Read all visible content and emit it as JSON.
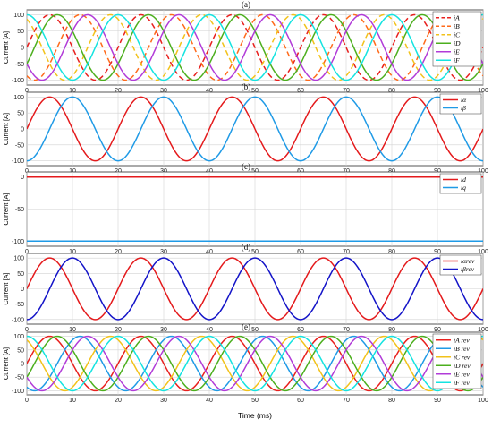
{
  "figure": {
    "xlabel": "Time (ms)",
    "x_ticks": [
      "0",
      "10",
      "20",
      "30",
      "40",
      "50",
      "60",
      "70",
      "80",
      "90",
      "100"
    ]
  },
  "chart_data": [
    {
      "type": "line",
      "panel_label": "(a)",
      "ylabel": "Current [A]",
      "xlim": [
        0,
        100
      ],
      "ylim": [
        -115,
        115
      ],
      "y_ticks": [
        -100,
        -50,
        0,
        50,
        100
      ],
      "grid": true,
      "legend_position": "top-right",
      "frequency_hz": 50,
      "series": [
        {
          "name": "iA",
          "sub": "A",
          "color": "#e8201e",
          "dash": true,
          "amplitude": 100,
          "phase_deg": 0
        },
        {
          "name": "iB",
          "sub": "B",
          "color": "#ff6a1a",
          "dash": true,
          "amplitude": 100,
          "phase_deg": -120
        },
        {
          "name": "iC",
          "sub": "C",
          "color": "#f2c21b",
          "dash": true,
          "amplitude": 100,
          "phase_deg": -240
        },
        {
          "name": "iD",
          "sub": "D",
          "color": "#4caf1e",
          "dash": false,
          "amplitude": 100,
          "phase_deg": -30
        },
        {
          "name": "iE",
          "sub": "E",
          "color": "#b13bd8",
          "dash": false,
          "amplitude": 100,
          "phase_deg": -150
        },
        {
          "name": "iF",
          "sub": "F",
          "color": "#14e3e0",
          "dash": false,
          "amplitude": 100,
          "phase_deg": -270
        }
      ]
    },
    {
      "type": "line",
      "panel_label": "(b)",
      "ylabel": "Current [A]",
      "xlim": [
        0,
        100
      ],
      "ylim": [
        -115,
        115
      ],
      "y_ticks": [
        -100,
        -50,
        0,
        50,
        100
      ],
      "grid": true,
      "legend_position": "top-right",
      "frequency_hz": 50,
      "series": [
        {
          "name": "iα",
          "sub": "",
          "color": "#e41a1c",
          "dash": false,
          "amplitude": 100,
          "phase_deg": 0
        },
        {
          "name": "iβ",
          "sub": "",
          "color": "#1f9ae6",
          "dash": false,
          "amplitude": 100,
          "phase_deg": -90
        }
      ]
    },
    {
      "type": "line",
      "panel_label": "(c)",
      "ylabel": "Current [A]",
      "xlim": [
        0,
        100
      ],
      "ylim": [
        -108,
        8
      ],
      "y_ticks": [
        -100,
        -50,
        0
      ],
      "grid": true,
      "legend_position": "top-right",
      "series": [
        {
          "name": "id",
          "sub": "d",
          "color": "#e41a1c",
          "dash": false,
          "constant": 0
        },
        {
          "name": "iq",
          "sub": "q",
          "color": "#1f9ae6",
          "dash": false,
          "constant": -100
        }
      ]
    },
    {
      "type": "line",
      "panel_label": "(d)",
      "ylabel": "Current [A]",
      "xlim": [
        0,
        100
      ],
      "ylim": [
        -115,
        115
      ],
      "y_ticks": [
        -100,
        -50,
        0,
        50,
        100
      ],
      "grid": true,
      "legend_position": "top-right",
      "frequency_hz": 50,
      "series": [
        {
          "name": "iαrev",
          "sub": "rev",
          "color": "#e41a1c",
          "dash": false,
          "amplitude": 100,
          "phase_deg": 0
        },
        {
          "name": "iβrev",
          "sub": "rev",
          "color": "#1414c8",
          "dash": false,
          "amplitude": 100,
          "phase_deg": -90
        }
      ]
    },
    {
      "type": "line",
      "panel_label": "(e)",
      "ylabel": "Current [A]",
      "xlim": [
        0,
        100
      ],
      "ylim": [
        -115,
        115
      ],
      "y_ticks": [
        -100,
        -50,
        0,
        50,
        100
      ],
      "grid": true,
      "legend_position": "top-right",
      "frequency_hz": 50,
      "series": [
        {
          "name": "iA rev",
          "sub": "A rev",
          "color": "#e8201e",
          "dash": false,
          "amplitude": 100,
          "phase_deg": 0
        },
        {
          "name": "iB rev",
          "sub": "B rev",
          "color": "#1f9ae6",
          "dash": false,
          "amplitude": 100,
          "phase_deg": -120
        },
        {
          "name": "iC rev",
          "sub": "C rev",
          "color": "#f2c21b",
          "dash": false,
          "amplitude": 100,
          "phase_deg": -240
        },
        {
          "name": "iD rev",
          "sub": "D rev",
          "color": "#4caf1e",
          "dash": false,
          "amplitude": 100,
          "phase_deg": -30
        },
        {
          "name": "iE rev",
          "sub": "E rev",
          "color": "#b13bd8",
          "dash": false,
          "amplitude": 100,
          "phase_deg": -150
        },
        {
          "name": "iF rev",
          "sub": "F rev",
          "color": "#14e3e0",
          "dash": false,
          "amplitude": 100,
          "phase_deg": -270
        }
      ]
    }
  ]
}
